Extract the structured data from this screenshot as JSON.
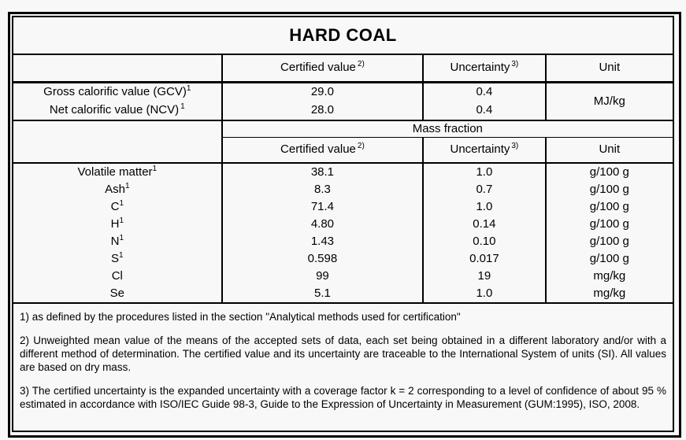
{
  "title": "HARD COAL",
  "headers": {
    "certified": "Certified value",
    "certified_sup": "2)",
    "uncertainty": "Uncertainty",
    "uncertainty_sup": "3)",
    "unit": "Unit",
    "mass_fraction": "Mass fraction"
  },
  "calorific": {
    "gcv": {
      "label": "Gross calorific value (GCV)",
      "sup": "1",
      "certified": "29.0",
      "uncertainty": "0.4"
    },
    "ncv": {
      "label": "Net calorific value (NCV)",
      "sup": "1",
      "certified": "28.0",
      "uncertainty": "0.4"
    },
    "unit": "MJ/kg"
  },
  "rows": [
    {
      "label": "Volatile matter",
      "sup": "1",
      "certified": "38.1",
      "uncertainty": "1.0",
      "unit": "g/100 g"
    },
    {
      "label": "Ash",
      "sup": "1",
      "certified": "8.3",
      "uncertainty": "0.7",
      "unit": "g/100 g"
    },
    {
      "label": "C",
      "sup": "1",
      "certified": "71.4",
      "uncertainty": "1.0",
      "unit": "g/100 g"
    },
    {
      "label": "H",
      "sup": "1",
      "certified": "4.80",
      "uncertainty": "0.14",
      "unit": "g/100 g"
    },
    {
      "label": "N",
      "sup": "1",
      "certified": "1.43",
      "uncertainty": "0.10",
      "unit": "g/100 g"
    },
    {
      "label": "S",
      "sup": "1",
      "certified": "0.598",
      "uncertainty": "0.017",
      "unit": "g/100 g"
    },
    {
      "label": "Cl",
      "sup": "",
      "certified": "99",
      "uncertainty": "19",
      "unit": "mg/kg"
    },
    {
      "label": "Se",
      "sup": "",
      "certified": "5.1",
      "uncertainty": "1.0",
      "unit": "mg/kg"
    }
  ],
  "footnotes": [
    "1) as defined by the procedures listed in the section \"Analytical methods used for certification\"",
    "2) Unweighted mean value of the means of the accepted sets of data, each set being obtained in a different laboratory and/or with a different method of determination. The certified value and its uncertainty are traceable to the International System of units (SI). All values are based on dry mass.",
    "3) The certified uncertainty is the expanded uncertainty with a coverage factor k = 2 corresponding to a level of confidence of about 95 % estimated in accordance with ISO/IEC Guide 98-3, Guide to the Expression of Uncertainty in Measurement (GUM:1995), ISO, 2008."
  ],
  "colors": {
    "border": "#000000",
    "background": "#f8f8f8",
    "text": "#000000"
  }
}
